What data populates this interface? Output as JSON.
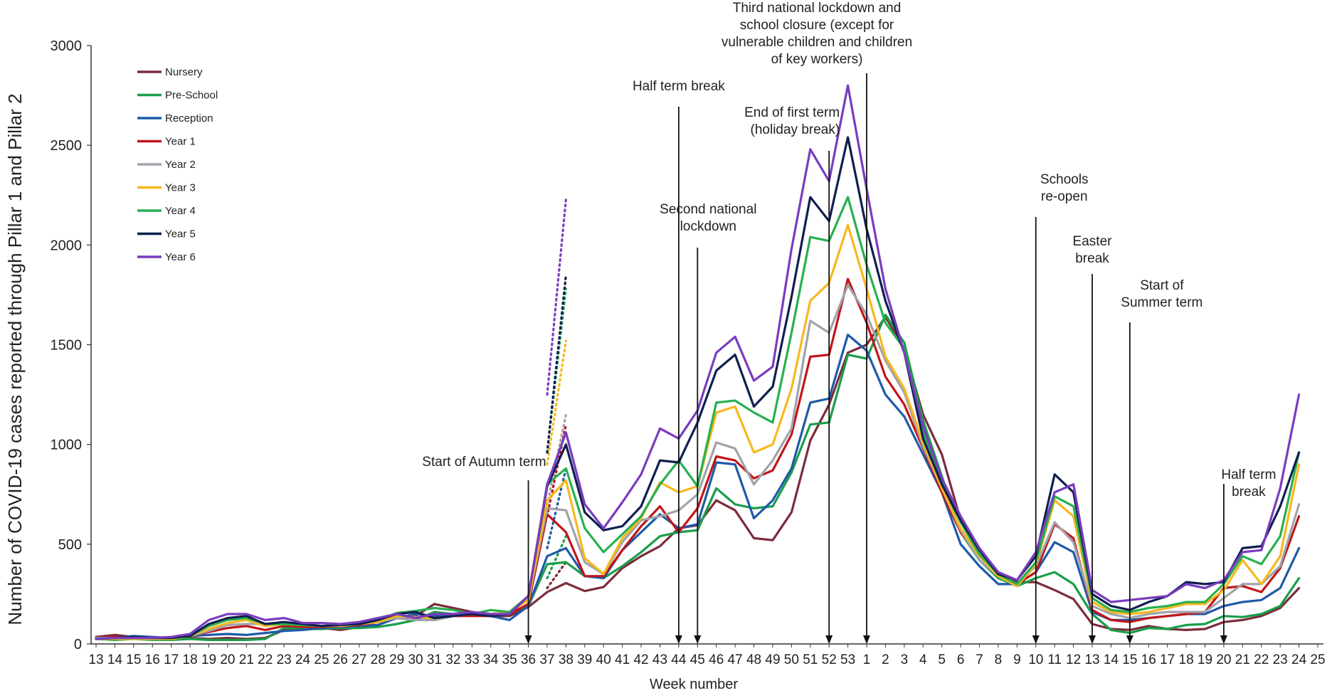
{
  "chart_data": {
    "type": "line",
    "xlabel": "Week number",
    "ylabel": "Number of COVID-19 cases reported through Pillar 1 and Pillar 2",
    "ylim": [
      0,
      3000
    ],
    "yticks": [
      0,
      500,
      1000,
      1500,
      2000,
      2500,
      3000
    ],
    "legend_position": "top-left",
    "categories": [
      "13",
      "14",
      "15",
      "16",
      "17",
      "18",
      "19",
      "20",
      "21",
      "22",
      "23",
      "24",
      "25",
      "26",
      "27",
      "28",
      "29",
      "30",
      "31",
      "32",
      "33",
      "34",
      "35",
      "36",
      "37",
      "38",
      "39",
      "40",
      "41",
      "42",
      "43",
      "44",
      "45",
      "46",
      "47",
      "48",
      "49",
      "50",
      "51",
      "52",
      "53",
      "1",
      "2",
      "3",
      "4",
      "5",
      "6",
      "7",
      "8",
      "9",
      "10",
      "11",
      "12",
      "13",
      "14",
      "15",
      "16",
      "17",
      "18",
      "19",
      "20",
      "21",
      "22",
      "23",
      "24",
      "25"
    ],
    "series": [
      {
        "name": "Nursery",
        "color": "#7b2c3b",
        "values": [
          35,
          45,
          35,
          30,
          25,
          30,
          25,
          30,
          25,
          30,
          70,
          75,
          80,
          70,
          85,
          95,
          130,
          140,
          200,
          180,
          160,
          140,
          140,
          185,
          260,
          305,
          265,
          285,
          380,
          440,
          490,
          580,
          595,
          720,
          670,
          530,
          520,
          660,
          1020,
          1200,
          1460,
          1500,
          1640,
          1480,
          1150,
          950,
          620,
          450,
          330,
          310,
          310,
          270,
          225,
          100,
          75,
          70,
          90,
          75,
          70,
          75,
          110,
          120,
          140,
          180,
          280,
          null
        ],
        "dotted": [
          [
            24,
            280
          ],
          [
            25,
            410
          ]
        ]
      },
      {
        "name": "Pre-School",
        "color": "#1a9e4a",
        "values": [
          25,
          20,
          25,
          20,
          20,
          25,
          20,
          20,
          20,
          25,
          80,
          75,
          75,
          80,
          80,
          85,
          100,
          120,
          160,
          150,
          150,
          150,
          160,
          190,
          400,
          410,
          340,
          330,
          390,
          460,
          540,
          560,
          570,
          780,
          700,
          680,
          690,
          860,
          1100,
          1110,
          1450,
          1430,
          1650,
          1510,
          1120,
          840,
          560,
          420,
          330,
          290,
          330,
          360,
          300,
          150,
          70,
          55,
          80,
          75,
          95,
          100,
          140,
          135,
          150,
          190,
          330,
          null
        ],
        "dotted": [
          [
            24,
            330
          ],
          [
            25,
            540
          ]
        ]
      },
      {
        "name": "Reception",
        "color": "#1f5aa8",
        "values": [
          30,
          30,
          40,
          35,
          30,
          40,
          45,
          50,
          45,
          55,
          65,
          70,
          80,
          85,
          90,
          95,
          130,
          150,
          140,
          150,
          150,
          140,
          120,
          190,
          440,
          480,
          340,
          330,
          470,
          560,
          650,
          580,
          600,
          910,
          900,
          630,
          720,
          880,
          1210,
          1230,
          1550,
          1470,
          1250,
          1140,
          950,
          760,
          500,
          390,
          300,
          300,
          360,
          510,
          460,
          160,
          120,
          120,
          130,
          140,
          150,
          150,
          190,
          210,
          220,
          280,
          480,
          null
        ],
        "dotted": [
          [
            24,
            480
          ],
          [
            25,
            880
          ]
        ]
      },
      {
        "name": "Year 1",
        "color": "#c0161a",
        "values": [
          30,
          35,
          30,
          30,
          30,
          40,
          60,
          80,
          90,
          70,
          90,
          85,
          85,
          90,
          95,
          110,
          130,
          120,
          120,
          140,
          140,
          140,
          150,
          200,
          650,
          560,
          340,
          340,
          470,
          590,
          690,
          560,
          680,
          940,
          920,
          830,
          870,
          1050,
          1440,
          1450,
          1830,
          1610,
          1340,
          1200,
          980,
          760,
          560,
          440,
          340,
          300,
          360,
          600,
          530,
          170,
          120,
          110,
          130,
          140,
          150,
          160,
          280,
          290,
          260,
          380,
          640,
          null
        ],
        "dotted": [
          [
            24,
            640
          ],
          [
            25,
            1100
          ]
        ]
      },
      {
        "name": "Year 2",
        "color": "#a0a3aa",
        "values": [
          30,
          30,
          30,
          30,
          30,
          40,
          65,
          95,
          100,
          100,
          100,
          95,
          90,
          100,
          100,
          110,
          130,
          120,
          120,
          140,
          150,
          150,
          160,
          220,
          680,
          670,
          410,
          350,
          510,
          620,
          640,
          670,
          750,
          1010,
          980,
          800,
          920,
          1080,
          1620,
          1560,
          1800,
          1650,
          1420,
          1260,
          990,
          780,
          570,
          420,
          340,
          300,
          390,
          610,
          510,
          190,
          150,
          130,
          150,
          160,
          160,
          160,
          230,
          300,
          300,
          390,
          700,
          null
        ],
        "dotted": [
          [
            24,
            700
          ],
          [
            25,
            1150
          ]
        ]
      },
      {
        "name": "Year 3",
        "color": "#f7b81d",
        "values": [
          25,
          25,
          25,
          25,
          25,
          40,
          75,
          105,
          120,
          90,
          100,
          95,
          90,
          90,
          100,
          110,
          140,
          135,
          130,
          140,
          150,
          150,
          160,
          220,
          720,
          820,
          430,
          350,
          530,
          630,
          810,
          760,
          790,
          1160,
          1190,
          960,
          1000,
          1280,
          1720,
          1810,
          2100,
          1780,
          1440,
          1280,
          1010,
          780,
          580,
          440,
          340,
          290,
          400,
          720,
          640,
          210,
          160,
          150,
          160,
          180,
          200,
          200,
          270,
          420,
          300,
          440,
          900,
          null
        ],
        "dotted": [
          [
            24,
            900
          ],
          [
            25,
            1520
          ]
        ]
      },
      {
        "name": "Year 4",
        "color": "#28b050",
        "values": [
          25,
          30,
          30,
          30,
          30,
          40,
          90,
          120,
          130,
          100,
          100,
          95,
          90,
          95,
          100,
          120,
          155,
          165,
          180,
          170,
          150,
          170,
          160,
          240,
          800,
          880,
          580,
          460,
          550,
          640,
          800,
          920,
          790,
          1210,
          1220,
          1160,
          1110,
          1560,
          2040,
          2020,
          2240,
          1900,
          1610,
          1480,
          1060,
          820,
          610,
          450,
          350,
          300,
          410,
          740,
          690,
          230,
          170,
          160,
          180,
          190,
          210,
          210,
          300,
          440,
          400,
          540,
          960,
          null
        ],
        "dotted": [
          [
            24,
            960
          ],
          [
            25,
            1780
          ]
        ]
      },
      {
        "name": "Year 5",
        "color": "#0f1f4e",
        "values": [
          25,
          30,
          35,
          30,
          30,
          40,
          100,
          130,
          140,
          100,
          110,
          100,
          90,
          95,
          100,
          120,
          150,
          160,
          130,
          140,
          150,
          140,
          150,
          240,
          790,
          1000,
          660,
          570,
          590,
          690,
          920,
          910,
          1110,
          1370,
          1450,
          1190,
          1290,
          1740,
          2240,
          2120,
          2540,
          2080,
          1720,
          1460,
          1030,
          800,
          620,
          470,
          350,
          320,
          440,
          850,
          760,
          250,
          190,
          170,
          210,
          240,
          310,
          300,
          310,
          480,
          490,
          690,
          960,
          null
        ],
        "dotted": [
          [
            24,
            960
          ],
          [
            25,
            1850
          ]
        ]
      },
      {
        "name": "Year 6",
        "color": "#7a3cbf",
        "values": [
          25,
          30,
          30,
          30,
          35,
          50,
          120,
          150,
          150,
          120,
          130,
          105,
          105,
          100,
          110,
          130,
          150,
          130,
          150,
          150,
          160,
          150,
          150,
          240,
          800,
          1060,
          700,
          580,
          710,
          850,
          1080,
          1030,
          1170,
          1460,
          1540,
          1320,
          1390,
          1980,
          2480,
          2320,
          2800,
          2280,
          1780,
          1460,
          1090,
          830,
          640,
          480,
          360,
          320,
          460,
          760,
          800,
          270,
          210,
          220,
          230,
          240,
          300,
          280,
          320,
          460,
          470,
          780,
          1250,
          null
        ],
        "dotted": [
          [
            24,
            1250
          ],
          [
            25,
            2230
          ]
        ]
      }
    ],
    "annotations": [
      {
        "lines": [
          "Start of Autumn term"
        ],
        "x_index": 23
      },
      {
        "lines": [
          "Half term break"
        ],
        "x_index": 31
      },
      {
        "lines": [
          "Second national",
          "lockdown"
        ],
        "x_index": 32
      },
      {
        "lines": [
          "End of first term",
          "(holiday break)"
        ],
        "x_index": 39
      },
      {
        "lines": [
          "Third national lockdown and",
          "school closure (except for",
          "vulnerable children and children",
          "of key workers)"
        ],
        "x_index": 41
      },
      {
        "lines": [
          "Schools",
          "re-open"
        ],
        "x_index": 50
      },
      {
        "lines": [
          "Easter",
          "break"
        ],
        "x_index": 53
      },
      {
        "lines": [
          "Start of",
          "Summer term"
        ],
        "x_index": 55
      },
      {
        "lines": [
          "Half term",
          "break"
        ],
        "x_index": 60
      }
    ]
  }
}
